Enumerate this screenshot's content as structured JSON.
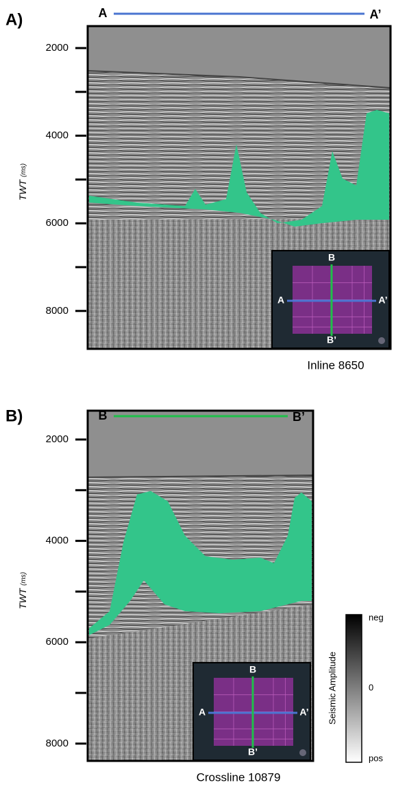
{
  "panels": [
    {
      "label": "A)",
      "start": "A",
      "end": "A’",
      "caption": "Inline 8650",
      "axis_title": "TWT",
      "axis_unit": "(ms)",
      "yticks": [
        2000,
        4000,
        6000,
        8000
      ],
      "inset": {
        "top": "B",
        "bottom": "B’",
        "left": "A",
        "right": "A’"
      }
    },
    {
      "label": "B)",
      "start": "B",
      "end": "B’",
      "caption": "Crossline 10879",
      "axis_title": "TWT",
      "axis_unit": "(ms)",
      "yticks": [
        2000,
        4000,
        6000,
        8000
      ],
      "inset": {
        "top": "B",
        "bottom": "B’",
        "left": "A",
        "right": "A’"
      }
    }
  ],
  "colorbar": {
    "title": "Seismic Amplitude",
    "top": "neg",
    "middle": 0,
    "bottom": "pos"
  }
}
